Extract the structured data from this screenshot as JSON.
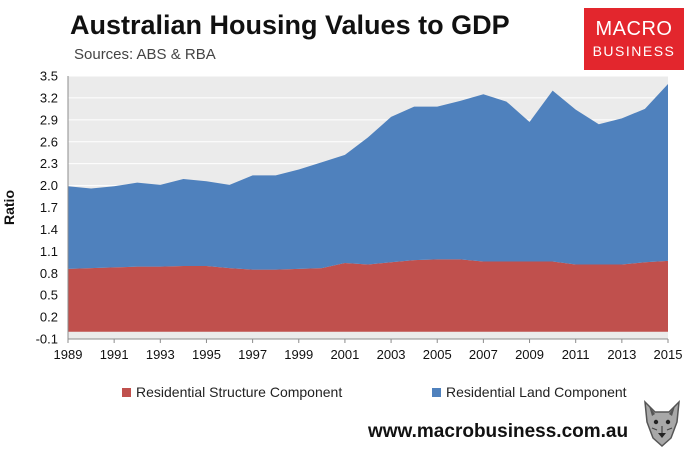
{
  "header": {
    "title": "Australian Housing Values to GDP",
    "subtitle": "Sources: ABS & RBA"
  },
  "logo": {
    "line1": "MACRO",
    "line2": "BUSINESS",
    "color": "#e3262d"
  },
  "footer": {
    "website": "www.macrobusiness.com.au"
  },
  "chart_data": {
    "type": "area",
    "stacked": true,
    "ylabel": "Ratio",
    "xlabel": "",
    "ylim": [
      -0.1,
      3.5
    ],
    "yticks": [
      "-0.1",
      "0.2",
      "0.5",
      "0.8",
      "1.1",
      "1.4",
      "1.7",
      "2.0",
      "2.3",
      "2.6",
      "2.9",
      "3.2",
      "3.5"
    ],
    "x": [
      1989,
      1990,
      1991,
      1992,
      1993,
      1994,
      1995,
      1996,
      1997,
      1998,
      1999,
      2000,
      2001,
      2002,
      2003,
      2004,
      2005,
      2006,
      2007,
      2008,
      2009,
      2010,
      2011,
      2012,
      2013,
      2014,
      2015
    ],
    "xticks": [
      "1989",
      "1991",
      "1993",
      "1995",
      "1997",
      "1999",
      "2001",
      "2003",
      "2005",
      "2007",
      "2009",
      "2011",
      "2013",
      "2015"
    ],
    "grid": "horizontal",
    "plot_background": "#ebebeb",
    "legend_position": "bottom",
    "series": [
      {
        "name": "Residential Structure Component",
        "color": "#c0504d",
        "values": [
          0.86,
          0.87,
          0.88,
          0.89,
          0.89,
          0.9,
          0.9,
          0.87,
          0.85,
          0.85,
          0.86,
          0.87,
          0.94,
          0.92,
          0.95,
          0.98,
          0.99,
          0.99,
          0.96,
          0.96,
          0.96,
          0.96,
          0.92,
          0.92,
          0.92,
          0.95,
          0.97
        ]
      },
      {
        "name": "Residential Land Component",
        "color": "#4f81bd",
        "values": [
          1.13,
          1.09,
          1.11,
          1.15,
          1.12,
          1.19,
          1.16,
          1.14,
          1.29,
          1.29,
          1.36,
          1.45,
          1.48,
          1.74,
          1.99,
          2.1,
          2.09,
          2.17,
          2.29,
          2.19,
          1.91,
          2.34,
          2.12,
          1.92,
          2.0,
          2.1,
          2.42
        ]
      }
    ]
  }
}
